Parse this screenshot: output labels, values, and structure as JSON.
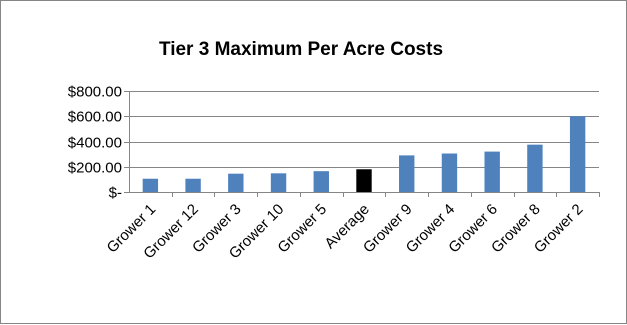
{
  "chart_data": {
    "type": "bar",
    "title": "Tier 3 Maximum Per Acre Costs",
    "categories": [
      "Grower 1",
      "Grower 12",
      "Grower 3",
      "Grower 10",
      "Grower 5",
      "Average",
      "Grower 9",
      "Grower 4",
      "Grower 6",
      "Grower 8",
      "Grower 2"
    ],
    "values": [
      105,
      105,
      145,
      148,
      165,
      180,
      290,
      305,
      320,
      375,
      600
    ],
    "highlight_category": "Average",
    "colors": {
      "bar": "#4f81bd",
      "highlight": "#000000",
      "grid": "#868686",
      "axis": "#868686"
    },
    "ylim": [
      0,
      800
    ],
    "y_ticks": [
      0,
      200,
      400,
      600,
      800
    ],
    "y_tick_labels": [
      "$-",
      "$200.00",
      "$400.00",
      "$600.00",
      "$800.00"
    ],
    "grid": true,
    "legend": "none",
    "xlabel": "",
    "ylabel": ""
  }
}
